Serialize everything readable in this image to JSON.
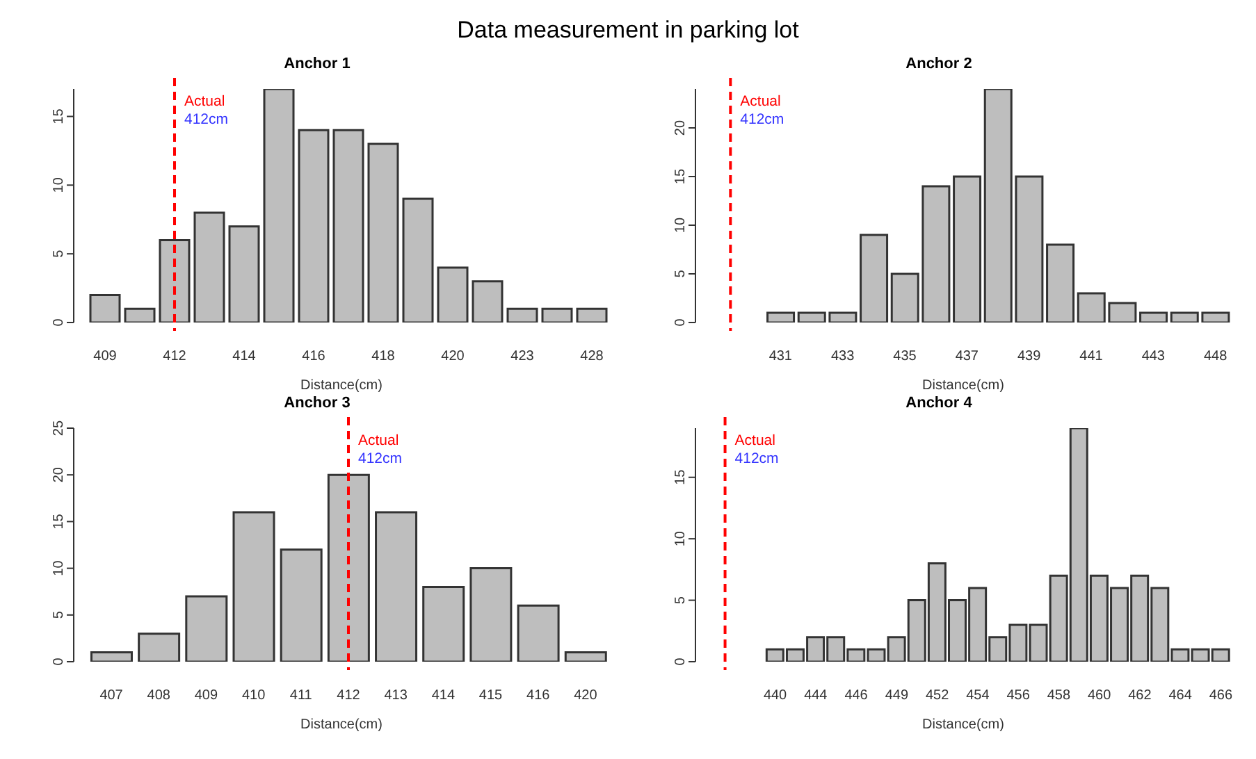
{
  "chart_data": [
    {
      "type": "bar",
      "title": "Data measurement in parking lot",
      "subtitle": "Anchor 1",
      "xlabel": "Distance(cm)",
      "categories": [
        "409",
        null,
        "412",
        null,
        "414",
        null,
        "416",
        null,
        "418",
        null,
        "420",
        null,
        "423",
        null,
        "428"
      ],
      "values": [
        2,
        1,
        6,
        8,
        7,
        17,
        14,
        14,
        13,
        9,
        4,
        3,
        1,
        1,
        1
      ],
      "color": "#bebebe",
      "ylim": [
        0,
        17
      ],
      "yticks": [
        0,
        5,
        10,
        15
      ],
      "grid": false,
      "ref_lines": [
        {
          "axis": "x",
          "value": "412",
          "label": "Actual",
          "color": "#ff0000",
          "line_style": "dashed"
        }
      ],
      "annotations": [
        "412cm"
      ]
    },
    {
      "type": "bar",
      "title": "Anchor 2",
      "xlabel": "Distance(cm)",
      "categories": [
        "431",
        null,
        "433",
        null,
        "435",
        null,
        "437",
        null,
        "439",
        null,
        "441",
        null,
        "443",
        null,
        "448"
      ],
      "values": [
        1,
        1,
        1,
        9,
        5,
        14,
        15,
        24,
        15,
        8,
        3,
        2,
        1,
        1,
        1
      ],
      "color": "#bebebe",
      "ylim": [
        0,
        24
      ],
      "yticks": [
        0,
        5,
        10,
        15,
        20
      ],
      "grid": false,
      "ref_lines": [
        {
          "axis": "x",
          "label": "Actual",
          "color": "#ff0000",
          "line_style": "dashed"
        }
      ],
      "annotations": [
        "412cm"
      ]
    },
    {
      "type": "bar",
      "title": "Anchor 3",
      "xlabel": "Distance(cm)",
      "categories": [
        "407",
        "408",
        "409",
        "410",
        "411",
        "412",
        "413",
        "414",
        "415",
        "416",
        "420"
      ],
      "values": [
        1,
        3,
        7,
        16,
        12,
        20,
        16,
        8,
        10,
        6,
        1
      ],
      "color": "#bebebe",
      "ylim": [
        0,
        25
      ],
      "yticks": [
        0,
        5,
        10,
        15,
        20,
        25
      ],
      "grid": false,
      "ref_lines": [
        {
          "axis": "x",
          "value": "412",
          "label": "Actual",
          "color": "#ff0000",
          "line_style": "dashed"
        }
      ],
      "annotations": [
        "412cm"
      ]
    },
    {
      "type": "bar",
      "title": "Anchor 4",
      "xlabel": "Distance(cm)",
      "categories": [
        "440",
        null,
        "444",
        null,
        "446",
        null,
        "449",
        null,
        "452",
        null,
        "454",
        null,
        "456",
        null,
        "458",
        null,
        "460",
        null,
        "462",
        null,
        "464",
        null,
        "466"
      ],
      "values": [
        1,
        1,
        2,
        2,
        1,
        1,
        2,
        5,
        8,
        5,
        6,
        2,
        3,
        3,
        7,
        19,
        7,
        6,
        7,
        6,
        1,
        1,
        1
      ],
      "color": "#bebebe",
      "ylim": [
        0,
        19
      ],
      "yticks": [
        0,
        5,
        10,
        15
      ],
      "grid": false,
      "ref_lines": [
        {
          "axis": "x",
          "label": "Actual",
          "color": "#ff0000",
          "line_style": "dashed"
        }
      ],
      "annotations": [
        "412cm"
      ]
    }
  ]
}
